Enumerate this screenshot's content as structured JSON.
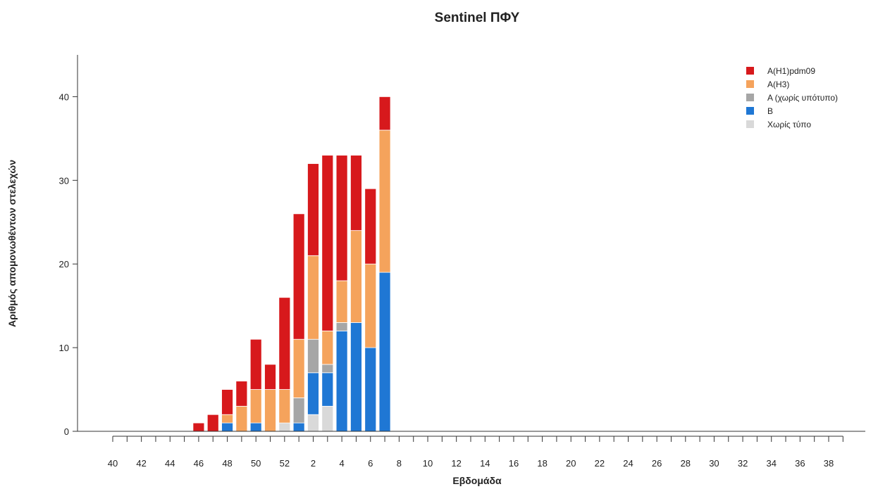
{
  "chart_data": {
    "type": "bar",
    "stacked": true,
    "title": "Sentinel ΠΦΥ",
    "xlabel": "Εβδομάδα",
    "ylabel": "Αριθμός απομονωθέντων στελεχών",
    "ylim": [
      0,
      45
    ],
    "yticks": [
      0,
      10,
      20,
      30,
      40
    ],
    "grid": false,
    "legend_position": "top-right",
    "categories": [
      40,
      41,
      42,
      43,
      44,
      45,
      46,
      47,
      48,
      49,
      50,
      51,
      52,
      1,
      2,
      3,
      4,
      5,
      6,
      7,
      8,
      9,
      10,
      11,
      12,
      13,
      14,
      15,
      16,
      17,
      18,
      19,
      20,
      21,
      22,
      23,
      24,
      25,
      26,
      27,
      28,
      29,
      30,
      31,
      32,
      33,
      34,
      35,
      36,
      37,
      38,
      39
    ],
    "xtick_labels": [
      "40",
      "42",
      "44",
      "46",
      "48",
      "50",
      "52",
      "2",
      "4",
      "6",
      "8",
      "10",
      "12",
      "14",
      "16",
      "18",
      "20",
      "22",
      "24",
      "26",
      "28",
      "30",
      "32",
      "34",
      "36",
      "38"
    ],
    "series": [
      {
        "name": "Χωρίς τύπο",
        "color": "#d9d9d9",
        "values": [
          0,
          0,
          0,
          0,
          0,
          0,
          0,
          0,
          0,
          0,
          0,
          0,
          1,
          0,
          2,
          3,
          0,
          0,
          0,
          0,
          0,
          0,
          0,
          0,
          0,
          0,
          0,
          0,
          0,
          0,
          0,
          0,
          0,
          0,
          0,
          0,
          0,
          0,
          0,
          0,
          0,
          0,
          0,
          0,
          0,
          0,
          0,
          0,
          0,
          0,
          0,
          0
        ]
      },
      {
        "name": "B",
        "color": "#1f77d4",
        "values": [
          0,
          0,
          0,
          0,
          0,
          0,
          0,
          0,
          1,
          0,
          1,
          0,
          0,
          1,
          5,
          4,
          12,
          13,
          10,
          19,
          0,
          0,
          0,
          0,
          0,
          0,
          0,
          0,
          0,
          0,
          0,
          0,
          0,
          0,
          0,
          0,
          0,
          0,
          0,
          0,
          0,
          0,
          0,
          0,
          0,
          0,
          0,
          0,
          0,
          0,
          0,
          0
        ]
      },
      {
        "name": "A (χωρίς υπότυπο)",
        "color": "#a6a6a6",
        "values": [
          0,
          0,
          0,
          0,
          0,
          0,
          0,
          0,
          0,
          0,
          0,
          0,
          0,
          3,
          4,
          1,
          1,
          0,
          0,
          0,
          0,
          0,
          0,
          0,
          0,
          0,
          0,
          0,
          0,
          0,
          0,
          0,
          0,
          0,
          0,
          0,
          0,
          0,
          0,
          0,
          0,
          0,
          0,
          0,
          0,
          0,
          0,
          0,
          0,
          0,
          0,
          0
        ]
      },
      {
        "name": "A(H3)",
        "color": "#f5a35c",
        "values": [
          0,
          0,
          0,
          0,
          0,
          0,
          0,
          0,
          1,
          3,
          4,
          5,
          4,
          7,
          10,
          4,
          5,
          11,
          10,
          17,
          0,
          0,
          0,
          0,
          0,
          0,
          0,
          0,
          0,
          0,
          0,
          0,
          0,
          0,
          0,
          0,
          0,
          0,
          0,
          0,
          0,
          0,
          0,
          0,
          0,
          0,
          0,
          0,
          0,
          0,
          0,
          0
        ]
      },
      {
        "name": "A(H1)pdm09",
        "color": "#d7191c",
        "values": [
          0,
          0,
          0,
          0,
          0,
          0,
          1,
          2,
          3,
          3,
          6,
          3,
          11,
          15,
          11,
          21,
          15,
          9,
          9,
          4,
          0,
          0,
          0,
          0,
          0,
          0,
          0,
          0,
          0,
          0,
          0,
          0,
          0,
          0,
          0,
          0,
          0,
          0,
          0,
          0,
          0,
          0,
          0,
          0,
          0,
          0,
          0,
          0,
          0,
          0,
          0,
          0
        ]
      }
    ],
    "legend_order": [
      "A(H1)pdm09",
      "A(H3)",
      "A (χωρίς υπότυπο)",
      "B",
      "Χωρίς τύπο"
    ]
  }
}
